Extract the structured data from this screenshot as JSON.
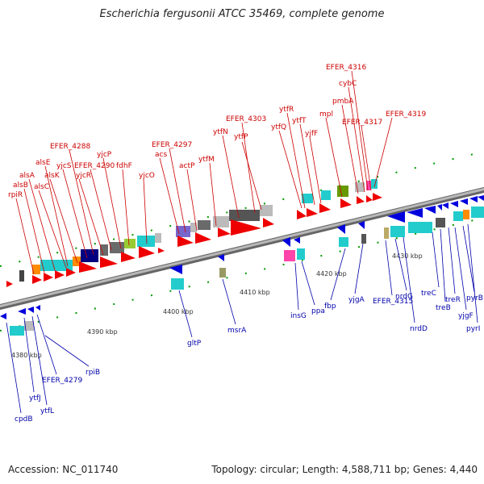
{
  "title": "Escherichia fergusonii ATCC 35469, complete genome",
  "footer": {
    "accession": "Accession: NC_011740",
    "summary": "Topology: circular; Length: 4,588,711 bp; Genes: 4,440"
  },
  "colors": {
    "forward_arrow": "#ee0000",
    "reverse_arrow": "#0000dd",
    "forward_label": "#cc0000",
    "reverse_label": "#0000aa",
    "backbone": "#8a8a8a",
    "tick": "#009900"
  },
  "scale_labels": [
    "4380 kbp",
    "4390 kbp",
    "4400 kbp",
    "4410 kbp",
    "4420 kbp",
    "4430 kbp"
  ],
  "forward_genes": [
    "rpiR",
    "alsB",
    "alsA",
    "alsC",
    "alsE",
    "alsK",
    "yjcS",
    "EFER_4288",
    "yjcR",
    "EFER_4290",
    "yjcP",
    "fdhF",
    "yjcO",
    "acs",
    "EFER_4297",
    "actP",
    "ytfM",
    "ytfN",
    "EFER_4303",
    "ytfP",
    "ytfQ",
    "ytfR",
    "ytfT",
    "yjfF",
    "mpl",
    "pmbA",
    "cybC",
    "EFER_4316",
    "EFER_4317",
    "EFER_4319"
  ],
  "reverse_genes": [
    "cpdB",
    "ytfJ",
    "ytfL",
    "EFER_4279",
    "rpiB",
    "gltP",
    "msrA",
    "insG",
    "ppa",
    "fbp",
    "yjgA",
    "EFER_4315",
    "nrdG",
    "nrdD",
    "treC",
    "treB",
    "treR",
    "yjgF",
    "pyrB",
    "pyrI"
  ]
}
